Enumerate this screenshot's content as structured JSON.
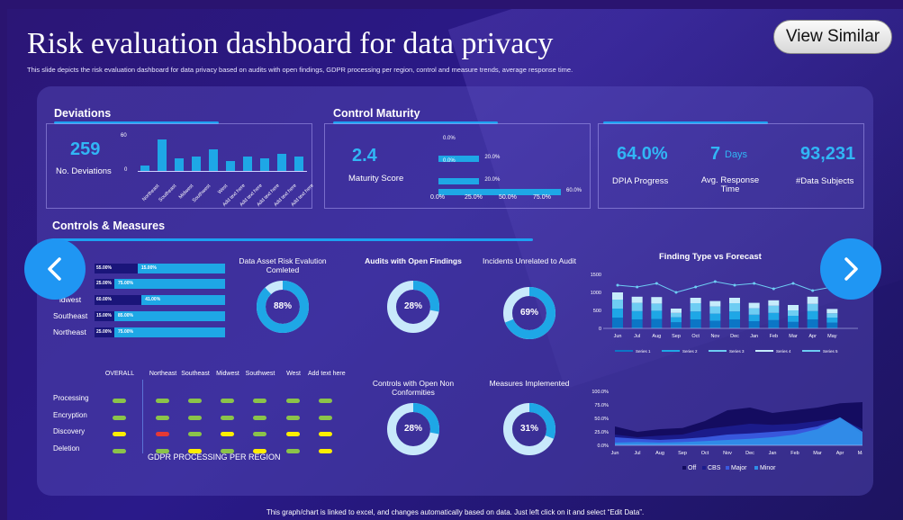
{
  "header": {
    "title": "Risk evaluation dashboard for data privacy",
    "subtitle": "This slide depicts the risk evaluation dashboard for data privacy based on audits with open findings, GDPR  processing per region, control and measure trends, average response time.",
    "view_similar": "View Similar"
  },
  "deviations": {
    "title": "Deviations",
    "value": "259",
    "label": "No. Deviations",
    "y_ticks": [
      "60",
      "0"
    ],
    "chart_data": {
      "type": "bar",
      "categories": [
        "Northeast",
        "Southeast",
        "Midwest",
        "Southwest",
        "West",
        "Add text here",
        "Add text here",
        "Add text here",
        "Add text here",
        "Add text here"
      ],
      "values": [
        10,
        56,
        22,
        26,
        38,
        18,
        25,
        22,
        30,
        25
      ],
      "ylim": [
        0,
        60
      ]
    }
  },
  "control_maturity": {
    "title": "Control Maturity",
    "value": "2.4",
    "label": "Maturity Score",
    "x_ticks": [
      "0.0%",
      "25.0%",
      "50.0%",
      "75.0%"
    ],
    "chart_data": {
      "type": "bar",
      "orientation": "horizontal",
      "series": [
        {
          "values": [
            0.0,
            20.0,
            0.0,
            20.0,
            60.0
          ],
          "labels": [
            "0.0%",
            "20.0%",
            "0.0%",
            "20.0%",
            "60.0%"
          ]
        }
      ],
      "xlim": [
        0,
        75
      ]
    }
  },
  "kpis": [
    {
      "value": "64.0%",
      "label": "DPIA Progress"
    },
    {
      "value": "7",
      "unit": "Days",
      "label": "Avg. Response Time"
    },
    {
      "value": "93,231",
      "label": "#Data Subjects"
    }
  ],
  "controls": {
    "title": "Controls & Measures",
    "regions": {
      "rows": [
        {
          "label": "",
          "a": "55.00%",
          "b": "15.00%"
        },
        {
          "label": "",
          "a": "25.00%",
          "b": "75.00%"
        },
        {
          "label": "idwest",
          "a": "60.00%",
          "b": "41.00%"
        },
        {
          "label": "Southeast",
          "a": "15.00%",
          "b": "85.00%"
        },
        {
          "label": "Northeast",
          "a": "25.00%",
          "b": "75.00%"
        }
      ],
      "chart_data": {
        "type": "bar",
        "orientation": "horizontal",
        "categories": [
          "",
          "",
          "Midwest",
          "Southeast",
          "Northeast"
        ],
        "series": [
          {
            "values": [
              55,
              25,
              60,
              15,
              25
            ]
          },
          {
            "values": [
              15,
              75,
              41,
              85,
              75
            ]
          }
        ]
      }
    },
    "donuts": [
      {
        "title": "Data Asset Risk Evalution Comleted",
        "value": "88%",
        "pct": 88
      },
      {
        "title": "Audits with Open Findings",
        "value": "28%",
        "pct": 28
      },
      {
        "title": "Incidents Unrelated to Audit",
        "value": "69%",
        "pct": 69
      },
      {
        "title": "Controls with Open Non Conformities",
        "value": "28%",
        "pct": 28
      },
      {
        "title": "Measures Implemented",
        "value": "31%",
        "pct": 31
      }
    ],
    "gdpr": {
      "footer": "GDPR PROCESSING PER REGION",
      "columns": [
        "OVERALL",
        "Northeast",
        "Southeast",
        "Midwest",
        "Southwest",
        "West",
        "Add text here"
      ],
      "rows": [
        {
          "label": "Processing",
          "status": [
            "g",
            "g",
            "g",
            "g",
            "g",
            "g",
            "g"
          ]
        },
        {
          "label": "Encryption",
          "status": [
            "g",
            "g",
            "g",
            "g",
            "g",
            "g",
            "g"
          ]
        },
        {
          "label": "Discovery",
          "status": [
            "y",
            "r",
            "g",
            "y",
            "g",
            "y",
            "y"
          ]
        },
        {
          "label": "Deletion",
          "status": [
            "g",
            "g",
            "y",
            "g",
            "y",
            "g",
            "y"
          ]
        }
      ],
      "colors": {
        "g": "#8bc34a",
        "y": "#ffee00",
        "r": "#e53935"
      }
    }
  },
  "finding_chart": {
    "title": "Finding Type vs Forecast",
    "y_ticks": [
      "1500",
      "1000",
      "500",
      "0"
    ],
    "chart_data": {
      "type": "bar",
      "categories": [
        "Jun",
        "Jul",
        "Aug",
        "Sep",
        "Oct",
        "Nov",
        "Dec",
        "Jan",
        "Feb",
        "Mar",
        "Apr",
        "May"
      ],
      "series": [
        {
          "name": "Series 1",
          "values": [
            300,
            250,
            260,
            170,
            250,
            210,
            250,
            200,
            230,
            180,
            250,
            160
          ]
        },
        {
          "name": "Series 2",
          "values": [
            250,
            230,
            230,
            140,
            220,
            200,
            220,
            180,
            200,
            170,
            230,
            140
          ]
        },
        {
          "name": "Series 3",
          "values": [
            250,
            230,
            200,
            120,
            230,
            200,
            230,
            180,
            200,
            150,
            200,
            120
          ]
        },
        {
          "name": "Series 4",
          "values": [
            200,
            170,
            180,
            120,
            150,
            150,
            150,
            150,
            150,
            150,
            200,
            120
          ]
        },
        {
          "name": "Series 5",
          "values": [
            1200,
            1150,
            1250,
            1000,
            1150,
            1300,
            1200,
            1250,
            1100,
            1250,
            1050,
            1150
          ]
        }
      ],
      "ylim": [
        0,
        1500
      ]
    },
    "legend": [
      "Series 1",
      "Series 2",
      "Series 3",
      "Series 4",
      "Series 5"
    ]
  },
  "area_chart": {
    "y_ticks": [
      "100.0%",
      "75.0%",
      "50.0%",
      "25.0%",
      "0.0%"
    ],
    "chart_data": {
      "type": "area",
      "categories": [
        "Jun",
        "Jul",
        "Aug",
        "Sep",
        "Oct",
        "Nov",
        "Dec",
        "Jan",
        "Feb",
        "Mar",
        "Apr",
        "May"
      ],
      "series": [
        {
          "name": "Off",
          "values": [
            0.35,
            0.25,
            0.3,
            0.32,
            0.45,
            0.65,
            0.7,
            0.6,
            0.65,
            0.7,
            0.78,
            0.8
          ]
        },
        {
          "name": "CBS",
          "values": [
            0.2,
            0.15,
            0.18,
            0.2,
            0.3,
            0.35,
            0.4,
            0.38,
            0.4,
            0.45,
            0.5,
            0.3
          ]
        },
        {
          "name": "Major",
          "values": [
            0.15,
            0.12,
            0.1,
            0.12,
            0.15,
            0.2,
            0.22,
            0.25,
            0.28,
            0.35,
            0.5,
            0.2
          ]
        },
        {
          "name": "Minor",
          "values": [
            0.05,
            0.06,
            0.05,
            0.06,
            0.08,
            0.1,
            0.12,
            0.15,
            0.2,
            0.3,
            0.52,
            0.25
          ]
        }
      ],
      "ylim": [
        0,
        1
      ]
    },
    "legend": [
      "Off",
      "CBS",
      "Major",
      "Minor"
    ]
  },
  "footer": "This graph/chart is linked to excel, and changes automatically based on data. Just left click on it and select “Edit Data”.",
  "nav": {
    "prev": "chevron-left-icon",
    "next": "chevron-right-icon"
  }
}
